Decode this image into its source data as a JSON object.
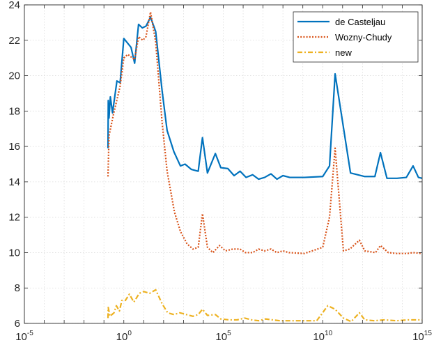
{
  "chart_data": {
    "type": "line",
    "x_scale": "log",
    "xlim": [
      1e-05,
      1000000000000000.0
    ],
    "ylim": [
      6,
      24
    ],
    "x_ticks": [
      {
        "value": 1e-05,
        "base": "10",
        "exp": "-5"
      },
      {
        "value": 1,
        "base": "10",
        "exp": "0"
      },
      {
        "value": 100000.0,
        "base": "10",
        "exp": "5"
      },
      {
        "value": 10000000000.0,
        "base": "10",
        "exp": "10"
      },
      {
        "value": 1000000000000000.0,
        "base": "10",
        "exp": "15"
      }
    ],
    "y_ticks": [
      6,
      8,
      10,
      12,
      14,
      16,
      18,
      20,
      22,
      24
    ],
    "grid": true,
    "legend": {
      "placement": "top-right"
    },
    "series": [
      {
        "name": "de Casteljau",
        "color": "#0072BD",
        "style": "solid",
        "points": [
          [
            0.16,
            15.9
          ],
          [
            0.165,
            18.6
          ],
          [
            0.18,
            17.6
          ],
          [
            0.21,
            18.8
          ],
          [
            0.27,
            17.9
          ],
          [
            0.45,
            19.7
          ],
          [
            0.65,
            19.6
          ],
          [
            1.0,
            22.1
          ],
          [
            2.3,
            21.6
          ],
          [
            3.5,
            20.7
          ],
          [
            5.5,
            22.9
          ],
          [
            8.5,
            22.7
          ],
          [
            13,
            22.8
          ],
          [
            22,
            23.3
          ],
          [
            40,
            22.5
          ],
          [
            85,
            19.1
          ],
          [
            150,
            16.9
          ],
          [
            330,
            15.7
          ],
          [
            700,
            14.9
          ],
          [
            1200,
            15.0
          ],
          [
            2500,
            14.7
          ],
          [
            5500,
            14.6
          ],
          [
            9000,
            16.5
          ],
          [
            16000,
            14.5
          ],
          [
            40000,
            15.6
          ],
          [
            75000,
            14.8
          ],
          [
            170000.0,
            14.75
          ],
          [
            350000.0,
            14.35
          ],
          [
            700000.0,
            14.6
          ],
          [
            1400000.0,
            14.25
          ],
          [
            3000000.0,
            14.4
          ],
          [
            6000000.0,
            14.15
          ],
          [
            12000000.0,
            14.25
          ],
          [
            25000000.0,
            14.45
          ],
          [
            50000000.0,
            14.15
          ],
          [
            100000000.0,
            14.35
          ],
          [
            220000000.0,
            14.25
          ],
          [
            1200000000.0,
            14.25
          ],
          [
            10000000000.0,
            14.3
          ],
          [
            22000000000.0,
            14.9
          ],
          [
            42000000000.0,
            20.1
          ],
          [
            250000000000.0,
            14.5
          ],
          [
            1300000000000.0,
            14.3
          ],
          [
            4200000000000.0,
            14.3
          ],
          [
            8000000000000.0,
            15.65
          ],
          [
            17000000000000.0,
            14.2
          ],
          [
            55000000000000.0,
            14.2
          ],
          [
            160000000000000.0,
            14.25
          ],
          [
            350000000000000.0,
            14.9
          ],
          [
            650000000000000.0,
            14.25
          ],
          [
            1000000000000000.0,
            14.2
          ]
        ]
      },
      {
        "name": "Wozny-Chudy",
        "color": "#D95319",
        "style": "dotted",
        "points": [
          [
            0.16,
            14.3
          ],
          [
            0.18,
            16.6
          ],
          [
            0.3,
            17.8
          ],
          [
            0.65,
            19.4
          ],
          [
            1.0,
            21.0
          ],
          [
            1.6,
            21.2
          ],
          [
            3.5,
            20.9
          ],
          [
            5.5,
            22.2
          ],
          [
            9,
            22.0
          ],
          [
            13,
            22.2
          ],
          [
            22,
            23.6
          ],
          [
            40,
            21.9
          ],
          [
            85,
            17.3
          ],
          [
            150,
            14.6
          ],
          [
            350,
            12.3
          ],
          [
            700,
            11.2
          ],
          [
            1500,
            10.5
          ],
          [
            3000,
            10.2
          ],
          [
            5500,
            10.3
          ],
          [
            9000,
            12.2
          ],
          [
            16000,
            10.3
          ],
          [
            30000,
            10.0
          ],
          [
            65000,
            10.4
          ],
          [
            130000.0,
            10.1
          ],
          [
            300000.0,
            10.2
          ],
          [
            700000.0,
            10.2
          ],
          [
            1300000.0,
            10.0
          ],
          [
            3000000.0,
            10.0
          ],
          [
            6000000.0,
            10.2
          ],
          [
            12000000.0,
            10.1
          ],
          [
            25000000.0,
            10.2
          ],
          [
            50000000.0,
            10.0
          ],
          [
            100000000.0,
            10.1
          ],
          [
            200000000.0,
            10.0
          ],
          [
            1200000000.0,
            9.95
          ],
          [
            10000000000.0,
            10.3
          ],
          [
            22000000000.0,
            12.0
          ],
          [
            42000000000.0,
            15.9
          ],
          [
            110000000000.0,
            10.1
          ],
          [
            230000000000.0,
            10.2
          ],
          [
            700000000000.0,
            10.7
          ],
          [
            1300000000000.0,
            10.1
          ],
          [
            4500000000000.0,
            10.0
          ],
          [
            8000000000000.0,
            10.4
          ],
          [
            20000000000000.0,
            10.0
          ],
          [
            55000000000000.0,
            9.95
          ],
          [
            180000000000000.0,
            9.95
          ],
          [
            350000000000000.0,
            10.0
          ],
          [
            1000000000000000.0,
            9.95
          ]
        ]
      },
      {
        "name": "new",
        "color": "#EDB120",
        "style": "dashdot",
        "points": [
          [
            0.16,
            6.3
          ],
          [
            0.165,
            6.9
          ],
          [
            0.2,
            6.4
          ],
          [
            0.32,
            6.6
          ],
          [
            0.42,
            7.0
          ],
          [
            0.6,
            6.7
          ],
          [
            0.8,
            7.3
          ],
          [
            1.2,
            7.3
          ],
          [
            1.9,
            7.65
          ],
          [
            3.2,
            7.2
          ],
          [
            6,
            7.7
          ],
          [
            10,
            7.8
          ],
          [
            20,
            7.7
          ],
          [
            40,
            7.9
          ],
          [
            85,
            7.1
          ],
          [
            160,
            6.6
          ],
          [
            330,
            6.5
          ],
          [
            650,
            6.6
          ],
          [
            1400,
            6.5
          ],
          [
            3000,
            6.4
          ],
          [
            5500,
            6.5
          ],
          [
            9000,
            6.8
          ],
          [
            16000,
            6.45
          ],
          [
            40000,
            6.5
          ],
          [
            75000,
            6.25
          ],
          [
            200000.0,
            6.2
          ],
          [
            500000.0,
            6.2
          ],
          [
            1200000.0,
            6.3
          ],
          [
            2700000.0,
            6.2
          ],
          [
            6000000.0,
            6.15
          ],
          [
            13000000.0,
            6.25
          ],
          [
            30000000.0,
            6.2
          ],
          [
            70000000.0,
            6.15
          ],
          [
            200000000.0,
            6.15
          ],
          [
            1000000000.0,
            6.15
          ],
          [
            5000000000.0,
            6.15
          ],
          [
            18000000000.0,
            7.0
          ],
          [
            42000000000.0,
            6.8
          ],
          [
            110000000000.0,
            6.3
          ],
          [
            270000000000.0,
            6.1
          ],
          [
            700000000000.0,
            6.6
          ],
          [
            1300000000000.0,
            6.2
          ],
          [
            4000000000000.0,
            6.15
          ],
          [
            13000000000000.0,
            6.2
          ],
          [
            50000000000000.0,
            6.15
          ],
          [
            200000000000000.0,
            6.2
          ],
          [
            600000000000000.0,
            6.2
          ],
          [
            1000000000000000.0,
            6.2
          ]
        ]
      }
    ]
  }
}
